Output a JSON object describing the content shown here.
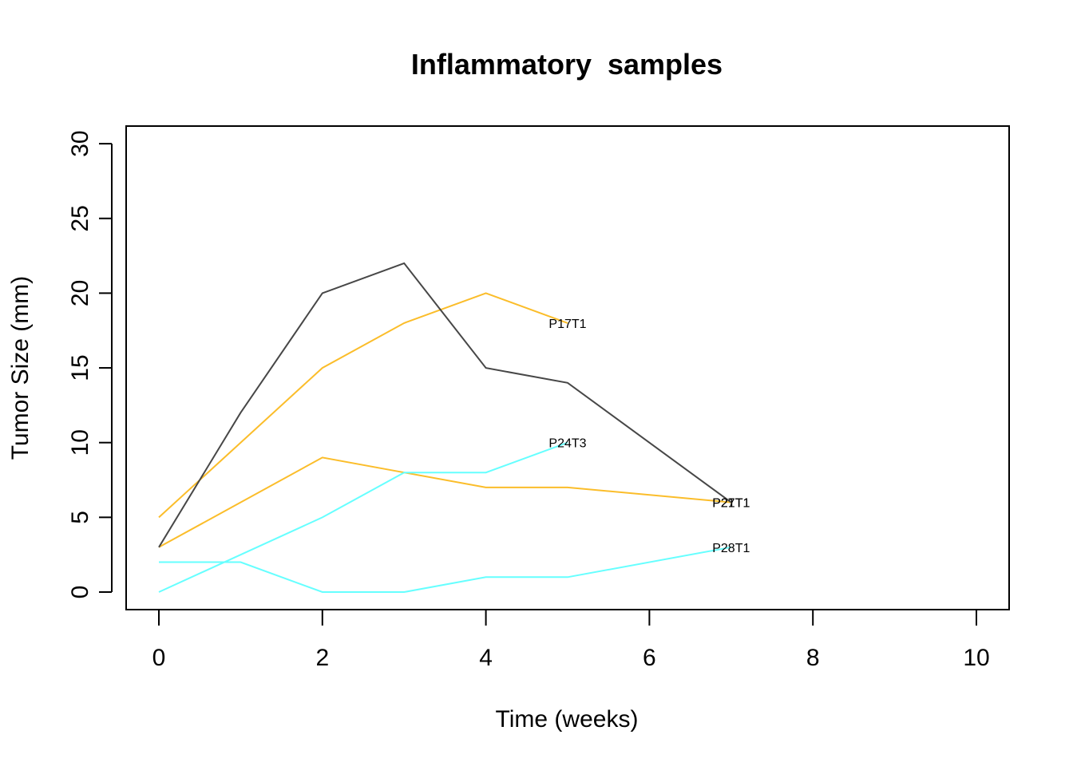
{
  "chart_data": {
    "type": "line",
    "title": "Inflammatory  samples",
    "xlabel": "Time (weeks)",
    "ylabel": "Tumor Size (mm)",
    "xlim": [
      0,
      10
    ],
    "ylim": [
      0,
      30
    ],
    "x_ticks": [
      0,
      2,
      4,
      6,
      8,
      10
    ],
    "y_ticks": [
      0,
      5,
      10,
      15,
      20,
      25,
      30
    ],
    "grid": false,
    "series": [
      {
        "name": "P17T1",
        "color": "#FBBD2A",
        "x": [
          0,
          2,
          3,
          4,
          5
        ],
        "y": [
          5,
          15,
          18,
          20,
          18
        ]
      },
      {
        "name": "P21T1",
        "color": "#FBBD2A",
        "x": [
          0,
          2,
          3,
          4,
          5,
          7
        ],
        "y": [
          3,
          9,
          8,
          7,
          7,
          6
        ]
      },
      {
        "name": "P27T1",
        "color": "#474747",
        "x": [
          0,
          1,
          2,
          3,
          4,
          5,
          7
        ],
        "y": [
          3,
          12,
          20,
          22,
          15,
          14,
          6
        ]
      },
      {
        "name": "P24T3",
        "color": "#66FFFF",
        "x": [
          0,
          2,
          3,
          4,
          5
        ],
        "y": [
          0,
          5,
          8,
          8,
          10
        ]
      },
      {
        "name": "P28T1",
        "color": "#66FFFF",
        "x": [
          0,
          1,
          2,
          3,
          4,
          5,
          7
        ],
        "y": [
          2,
          2,
          0,
          0,
          1,
          1,
          3
        ]
      }
    ]
  }
}
